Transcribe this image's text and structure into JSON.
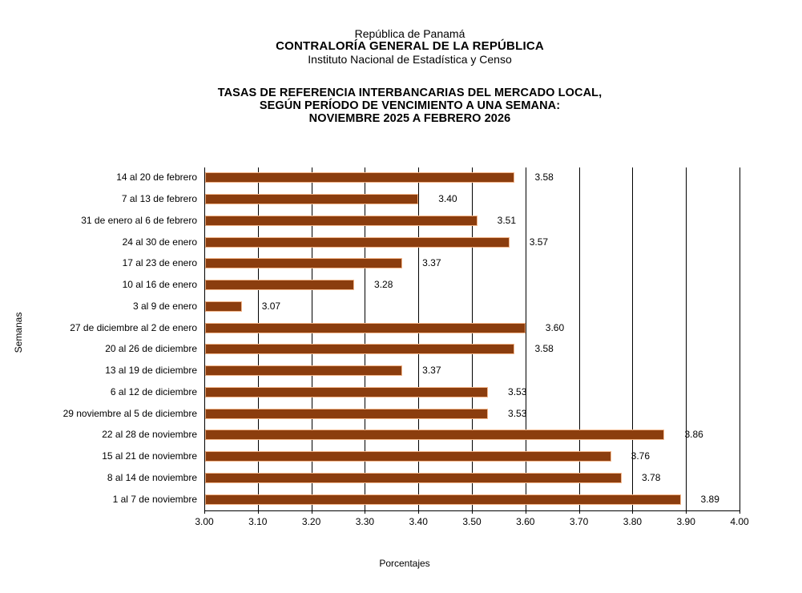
{
  "header": {
    "org_line1": "República de Panamá",
    "org_line2": "CONTRALORÍA GENERAL DE LA REPÚBLICA",
    "org_line3": "Instituto Nacional de Estadística y Censo"
  },
  "title": {
    "line1": "TASAS DE REFERENCIA INTERBANCARIAS DEL MERCADO LOCAL,",
    "line2": "SEGÚN PERÍODO DE VENCIMIENTO A UNA SEMANA:",
    "line3": "NOVIEMBRE 2025 A FEBRERO 2026"
  },
  "chart_data": {
    "type": "bar",
    "orientation": "horizontal",
    "title": "TASAS DE REFERENCIA INTERBANCARIAS DEL MERCADO LOCAL, SEGÚN PERÍODO DE VENCIMIENTO A UNA SEMANA: NOVIEMBRE 2025 A FEBRERO 2026",
    "xlabel": "Porcentajes",
    "ylabel": "Semanas",
    "xlim": [
      3.0,
      4.0
    ],
    "xticks": [
      "3.00",
      "3.10",
      "3.20",
      "3.30",
      "3.40",
      "3.50",
      "3.60",
      "3.70",
      "3.80",
      "3.90",
      "4.00"
    ],
    "grid": true,
    "legend": "none",
    "bar_color": "#8B3D0E",
    "bar_border_color": "#F2B488",
    "gridline_color": "#000000",
    "categories": [
      "14 al 20 de febrero",
      "7 al 13 de febrero",
      "31 de enero al 6 de febrero",
      "24 al 30 de enero",
      "17 al 23 de enero",
      "10 al 16 de enero",
      "3 al 9 de enero",
      "27 de diciembre al 2 de enero",
      "20 al 26 de diciembre",
      "13 al 19 de diciembre",
      "6 al 12 de diciembre",
      "29 noviembre al 5 de diciembre",
      "22 al 28 de noviembre",
      "15 al 21 de noviembre",
      "8 al 14 de noviembre",
      "1 al 7 de noviembre"
    ],
    "values": [
      3.58,
      3.4,
      3.51,
      3.57,
      3.37,
      3.28,
      3.07,
      3.6,
      3.58,
      3.37,
      3.53,
      3.53,
      3.86,
      3.76,
      3.78,
      3.89
    ]
  }
}
